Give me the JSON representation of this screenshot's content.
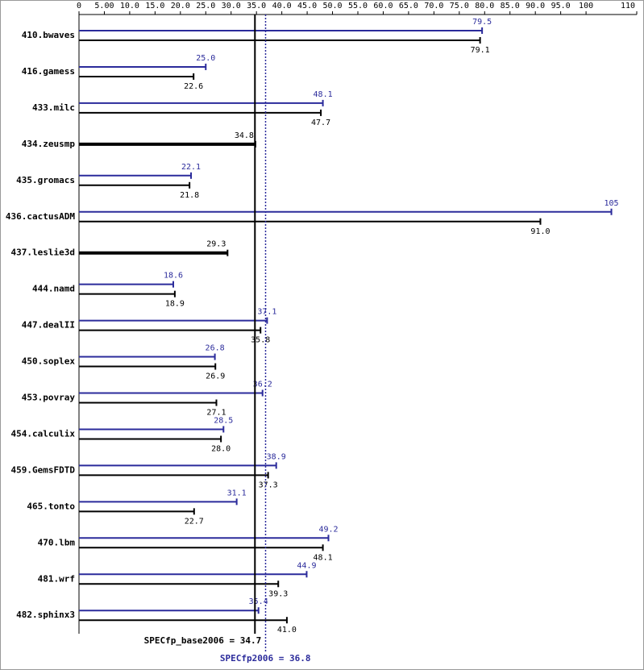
{
  "chart_data": {
    "type": "bar",
    "orientation": "horizontal",
    "categories": [
      "410.bwaves",
      "416.gamess",
      "433.milc",
      "434.zeusmp",
      "435.gromacs",
      "436.cactusADM",
      "437.leslie3d",
      "444.namd",
      "447.dealII",
      "450.soplex",
      "453.povray",
      "454.calculix",
      "459.GemsFDTD",
      "465.tonto",
      "470.lbm",
      "481.wrf",
      "482.sphinx3"
    ],
    "series": [
      {
        "name": "SPECfp2006",
        "color": "#2b2b9b",
        "values": [
          79.5,
          25.0,
          48.1,
          null,
          22.1,
          105,
          null,
          18.6,
          37.1,
          26.8,
          36.2,
          28.5,
          38.9,
          31.1,
          49.2,
          44.9,
          35.4
        ],
        "value_labels": [
          "79.5",
          "25.0",
          "48.1",
          null,
          "22.1",
          "105",
          null,
          "18.6",
          "37.1",
          "26.8",
          "36.2",
          "28.5",
          "38.9",
          "31.1",
          "49.2",
          "44.9",
          "35.4"
        ]
      },
      {
        "name": "SPECfp_base2006",
        "color": "#000000",
        "values": [
          79.1,
          22.6,
          47.7,
          34.8,
          21.8,
          91.0,
          29.3,
          18.9,
          35.8,
          26.9,
          27.1,
          28.0,
          37.3,
          22.7,
          48.1,
          39.3,
          41.0
        ],
        "value_labels": [
          "79.1",
          "22.6",
          "47.7",
          "34.8",
          "21.8",
          "91.0",
          "29.3",
          "18.9",
          "35.8",
          "26.9",
          "27.1",
          "28.0",
          "37.3",
          "22.7",
          "48.1",
          "39.3",
          "41.0"
        ]
      }
    ],
    "xlim": [
      0,
      110
    ],
    "xticks": [
      0,
      {
        "value": 5,
        "label": "5.00"
      },
      {
        "value": 10,
        "label": "10.0"
      },
      {
        "value": 15,
        "label": "15.0"
      },
      {
        "value": 20,
        "label": "20.0"
      },
      {
        "value": 25,
        "label": "25.0"
      },
      {
        "value": 30,
        "label": "30.0"
      },
      {
        "value": 35,
        "label": "35.0"
      },
      {
        "value": 40,
        "label": "40.0"
      },
      {
        "value": 45,
        "label": "45.0"
      },
      {
        "value": 50,
        "label": "50.0"
      },
      {
        "value": 55,
        "label": "55.0"
      },
      {
        "value": 60,
        "label": "60.0"
      },
      {
        "value": 65,
        "label": "65.0"
      },
      {
        "value": 70,
        "label": "70.0"
      },
      {
        "value": 75,
        "label": "75.0"
      },
      {
        "value": 80,
        "label": "80.0"
      },
      {
        "value": 85,
        "label": "85.0"
      },
      {
        "value": 90,
        "label": "90.0"
      },
      {
        "value": 95,
        "label": "95.0"
      },
      100,
      110
    ],
    "reference_lines": [
      {
        "value": 34.7,
        "label": "SPECfp_base2006 = 34.7",
        "color": "#000000",
        "style": "solid"
      },
      {
        "value": 36.8,
        "label": "SPECfp2006 = 36.8",
        "color": "#2b2b9b",
        "style": "dotted"
      }
    ]
  }
}
